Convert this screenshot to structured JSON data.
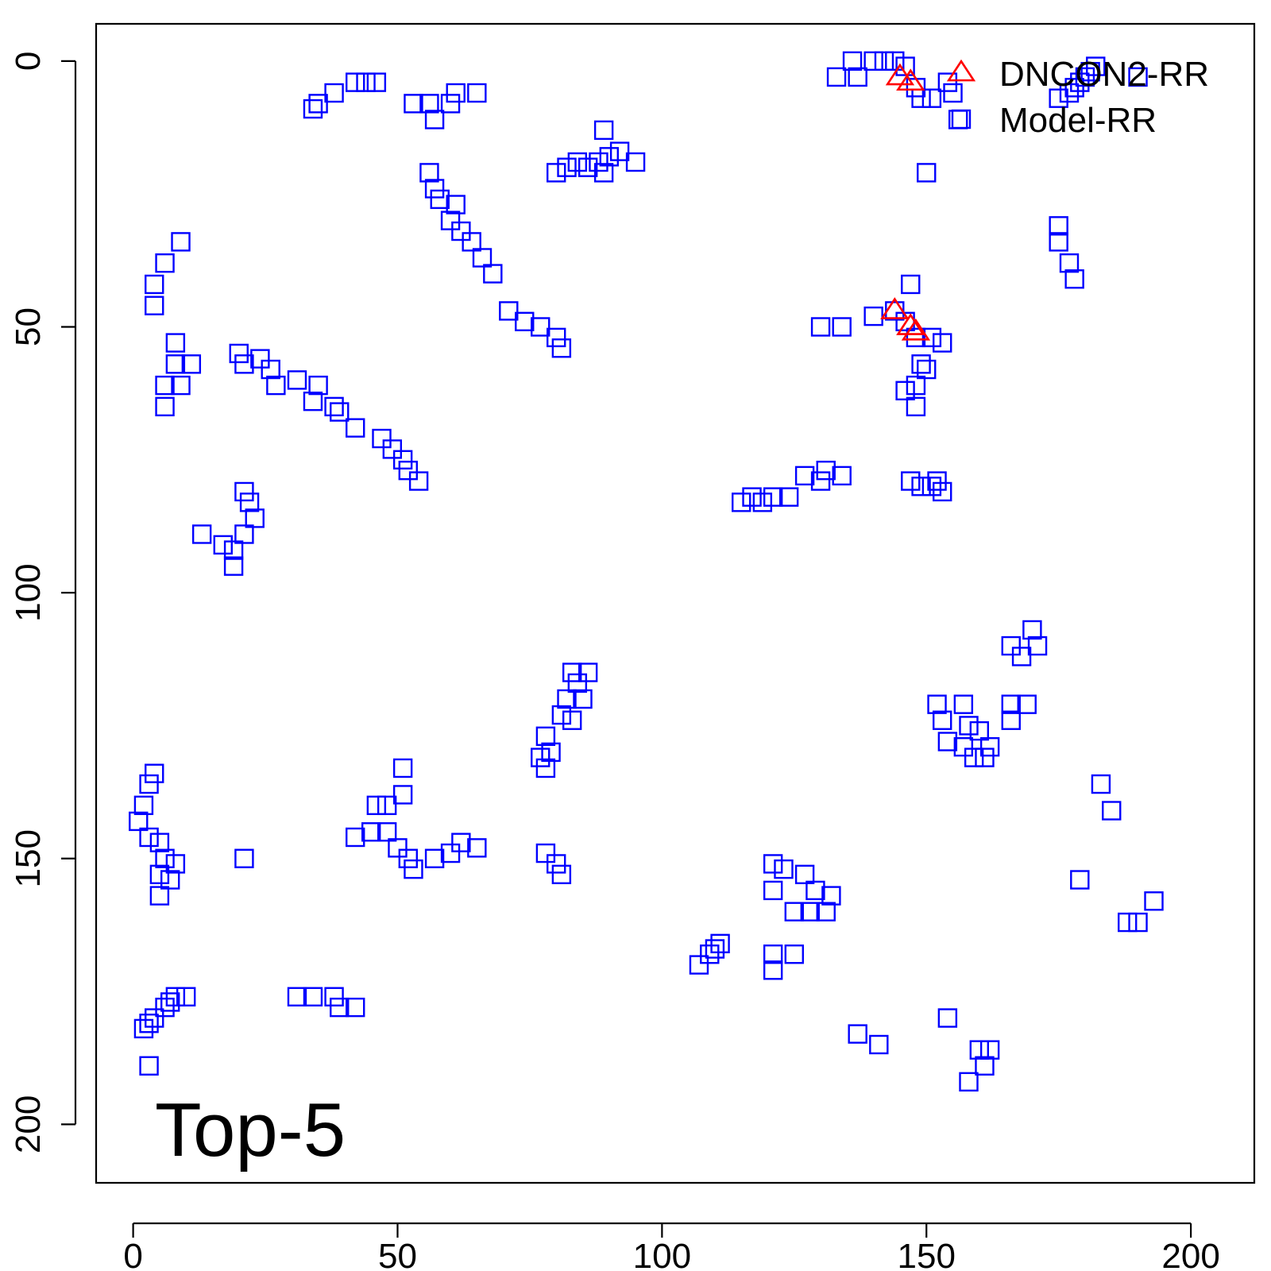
{
  "chart_data": {
    "type": "scatter",
    "title": "",
    "xlabel": "",
    "ylabel": "",
    "annotation": "Top-5",
    "xlim": [
      -7,
      212
    ],
    "ylim": [
      -7,
      211
    ],
    "y_reversed": true,
    "x_ticks": [
      0,
      50,
      100,
      150,
      200
    ],
    "y_ticks": [
      0,
      50,
      100,
      150,
      200
    ],
    "legend_position": "top-right",
    "grid": false,
    "series": [
      {
        "name": "DNCON2-RR",
        "marker": "triangle",
        "color": "#ff0000",
        "points": [
          [
            145,
            3
          ],
          [
            147,
            4
          ],
          [
            144,
            47
          ],
          [
            147,
            50
          ],
          [
            148,
            51
          ]
        ]
      },
      {
        "name": "Model-RR",
        "marker": "square",
        "color": "#0000ff",
        "points": [
          [
            133,
            3
          ],
          [
            136,
            0
          ],
          [
            137,
            3
          ],
          [
            140,
            0
          ],
          [
            142,
            0
          ],
          [
            144,
            0
          ],
          [
            146,
            1
          ],
          [
            148,
            5
          ],
          [
            149,
            7
          ],
          [
            151,
            7
          ],
          [
            154,
            4
          ],
          [
            155,
            6
          ],
          [
            156,
            11
          ],
          [
            150,
            21
          ],
          [
            175,
            7
          ],
          [
            177,
            6
          ],
          [
            178,
            5
          ],
          [
            179,
            4
          ],
          [
            180,
            3
          ],
          [
            181,
            2
          ],
          [
            182,
            1
          ],
          [
            190,
            3
          ],
          [
            34,
            9
          ],
          [
            35,
            8
          ],
          [
            38,
            6
          ],
          [
            42,
            4
          ],
          [
            44,
            4
          ],
          [
            46,
            4
          ],
          [
            53,
            8
          ],
          [
            56,
            8
          ],
          [
            57,
            11
          ],
          [
            60,
            8
          ],
          [
            61,
            6
          ],
          [
            65,
            6
          ],
          [
            80,
            21
          ],
          [
            82,
            20
          ],
          [
            84,
            19
          ],
          [
            86,
            20
          ],
          [
            88,
            19
          ],
          [
            89,
            21
          ],
          [
            90,
            18
          ],
          [
            92,
            17
          ],
          [
            95,
            19
          ],
          [
            89,
            13
          ],
          [
            56,
            21
          ],
          [
            57,
            24
          ],
          [
            58,
            26
          ],
          [
            61,
            27
          ],
          [
            60,
            30
          ],
          [
            62,
            32
          ],
          [
            64,
            34
          ],
          [
            66,
            37
          ],
          [
            68,
            40
          ],
          [
            71,
            47
          ],
          [
            74,
            49
          ],
          [
            77,
            50
          ],
          [
            80,
            52
          ],
          [
            81,
            54
          ],
          [
            175,
            31
          ],
          [
            175,
            34
          ],
          [
            177,
            38
          ],
          [
            178,
            41
          ],
          [
            9,
            34
          ],
          [
            6,
            38
          ],
          [
            4,
            42
          ],
          [
            4,
            46
          ],
          [
            8,
            53
          ],
          [
            8,
            57
          ],
          [
            11,
            57
          ],
          [
            6,
            61
          ],
          [
            9,
            61
          ],
          [
            6,
            65
          ],
          [
            20,
            55
          ],
          [
            21,
            57
          ],
          [
            24,
            56
          ],
          [
            26,
            58
          ],
          [
            27,
            61
          ],
          [
            31,
            60
          ],
          [
            35,
            61
          ],
          [
            34,
            64
          ],
          [
            38,
            65
          ],
          [
            39,
            66
          ],
          [
            42,
            69
          ],
          [
            47,
            71
          ],
          [
            49,
            73
          ],
          [
            51,
            75
          ],
          [
            52,
            77
          ],
          [
            54,
            79
          ],
          [
            21,
            81
          ],
          [
            22,
            83
          ],
          [
            23,
            86
          ],
          [
            21,
            89
          ],
          [
            19,
            92
          ],
          [
            17,
            91
          ],
          [
            13,
            89
          ],
          [
            19,
            95
          ],
          [
            115,
            83
          ],
          [
            117,
            82
          ],
          [
            119,
            83
          ],
          [
            121,
            82
          ],
          [
            124,
            82
          ],
          [
            127,
            78
          ],
          [
            131,
            77
          ],
          [
            134,
            78
          ],
          [
            130,
            79
          ],
          [
            147,
            79
          ],
          [
            149,
            80
          ],
          [
            151,
            80
          ],
          [
            153,
            81
          ],
          [
            152,
            79
          ],
          [
            144,
            47
          ],
          [
            146,
            49
          ],
          [
            148,
            52
          ],
          [
            151,
            52
          ],
          [
            153,
            53
          ],
          [
            149,
            57
          ],
          [
            150,
            58
          ],
          [
            148,
            61
          ],
          [
            148,
            65
          ],
          [
            146,
            62
          ],
          [
            130,
            50
          ],
          [
            134,
            50
          ],
          [
            140,
            48
          ],
          [
            147,
            42
          ],
          [
            83,
            115
          ],
          [
            84,
            117
          ],
          [
            86,
            115
          ],
          [
            82,
            120
          ],
          [
            85,
            120
          ],
          [
            81,
            123
          ],
          [
            83,
            124
          ],
          [
            78,
            127
          ],
          [
            77,
            131
          ],
          [
            79,
            130
          ],
          [
            78,
            133
          ],
          [
            166,
            110
          ],
          [
            168,
            112
          ],
          [
            170,
            107
          ],
          [
            171,
            110
          ],
          [
            166,
            121
          ],
          [
            166,
            124
          ],
          [
            169,
            121
          ],
          [
            152,
            121
          ],
          [
            153,
            124
          ],
          [
            154,
            128
          ],
          [
            157,
            121
          ],
          [
            158,
            125
          ],
          [
            157,
            129
          ],
          [
            160,
            126
          ],
          [
            159,
            131
          ],
          [
            161,
            131
          ],
          [
            162,
            129
          ],
          [
            2,
            140
          ],
          [
            1,
            143
          ],
          [
            3,
            136
          ],
          [
            4,
            134
          ],
          [
            3,
            146
          ],
          [
            5,
            147
          ],
          [
            6,
            150
          ],
          [
            8,
            151
          ],
          [
            7,
            154
          ],
          [
            5,
            157
          ],
          [
            5,
            153
          ],
          [
            21,
            150
          ],
          [
            42,
            146
          ],
          [
            45,
            145
          ],
          [
            46,
            140
          ],
          [
            48,
            140
          ],
          [
            48,
            145
          ],
          [
            50,
            148
          ],
          [
            52,
            150
          ],
          [
            53,
            152
          ],
          [
            51,
            133
          ],
          [
            51,
            138
          ],
          [
            57,
            150
          ],
          [
            60,
            149
          ],
          [
            62,
            147
          ],
          [
            65,
            148
          ],
          [
            78,
            149
          ],
          [
            80,
            151
          ],
          [
            81,
            153
          ],
          [
            137,
            183
          ],
          [
            141,
            185
          ],
          [
            154,
            180
          ],
          [
            160,
            186
          ],
          [
            162,
            186
          ],
          [
            161,
            189
          ],
          [
            158,
            192
          ],
          [
            183,
            136
          ],
          [
            185,
            141
          ],
          [
            179,
            154
          ],
          [
            188,
            162
          ],
          [
            190,
            162
          ],
          [
            193,
            158
          ],
          [
            121,
            151
          ],
          [
            123,
            152
          ],
          [
            127,
            153
          ],
          [
            129,
            156
          ],
          [
            132,
            157
          ],
          [
            121,
            156
          ],
          [
            125,
            160
          ],
          [
            128,
            160
          ],
          [
            131,
            160
          ],
          [
            107,
            170
          ],
          [
            109,
            168
          ],
          [
            110,
            167
          ],
          [
            111,
            166
          ],
          [
            121,
            168
          ],
          [
            125,
            168
          ],
          [
            121,
            171
          ],
          [
            2,
            182
          ],
          [
            3,
            181
          ],
          [
            4,
            180
          ],
          [
            6,
            178
          ],
          [
            7,
            177
          ],
          [
            8,
            176
          ],
          [
            10,
            176
          ],
          [
            3,
            189
          ],
          [
            31,
            176
          ],
          [
            34,
            176
          ],
          [
            38,
            176
          ],
          [
            39,
            178
          ],
          [
            42,
            178
          ]
        ]
      }
    ]
  }
}
